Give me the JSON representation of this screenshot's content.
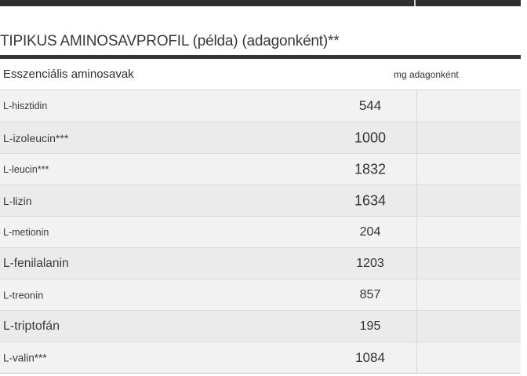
{
  "title": "TIPIKUS AMINOSAVPROFIL (példa) (adagonként)**",
  "section": {
    "header": "Esszenciális aminosavak",
    "unit_header": "mg adagonként"
  },
  "table": {
    "rows": [
      {
        "name": "L-hisztidin",
        "value": "544"
      },
      {
        "name": "L-izoleucin***",
        "value": "1000"
      },
      {
        "name": "L-leucin***",
        "value": "1832"
      },
      {
        "name": "L-lizin",
        "value": "1634"
      },
      {
        "name": "L-metionin",
        "value": "204"
      },
      {
        "name": "L-fenilalanin",
        "value": "1203"
      },
      {
        "name": "L-treonin",
        "value": "857"
      },
      {
        "name": "L-triptofán",
        "value": "195"
      },
      {
        "name": "L-valin***",
        "value": "1084"
      }
    ]
  },
  "colors": {
    "header_bar": "#2f2f2f",
    "thick_rule": "#343434",
    "row_odd": "#f2f2f2",
    "row_even": "#ebebeb",
    "divider": "#d9d9d9",
    "text": "#3a3a3a"
  }
}
